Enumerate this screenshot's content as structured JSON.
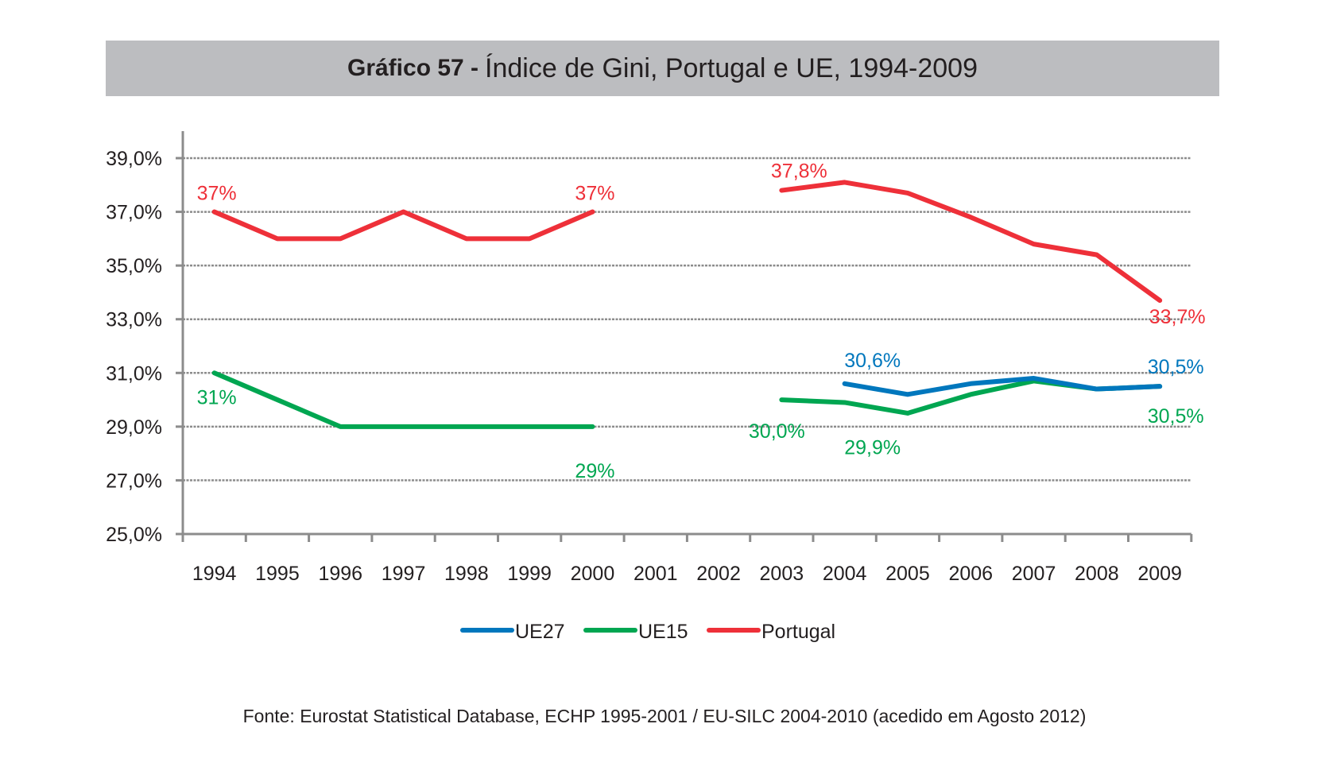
{
  "chart_data": {
    "type": "line",
    "title_prefix": "Gráfico 57 -",
    "title": "Índice de Gini, Portugal e UE, 1994-2009",
    "xlabel": "",
    "ylabel": "",
    "categories": [
      "1994",
      "1995",
      "1996",
      "1997",
      "1998",
      "1999",
      "2000",
      "2001",
      "2002",
      "2003",
      "2004",
      "2005",
      "2006",
      "2007",
      "2008",
      "2009"
    ],
    "ylim": [
      25,
      40
    ],
    "yticks": [
      25,
      27,
      29,
      31,
      33,
      35,
      37,
      39
    ],
    "ytick_labels": [
      "25,0%",
      "27,0%",
      "29,0%",
      "31,0%",
      "33,0%",
      "35,0%",
      "37,0%",
      "39,0%"
    ],
    "grid": "horizontal dotted",
    "legend_position": "bottom",
    "series": [
      {
        "name": "UE27",
        "color": "#0077bd",
        "values": [
          null,
          null,
          null,
          null,
          null,
          null,
          null,
          null,
          null,
          null,
          30.6,
          30.2,
          30.6,
          30.8,
          30.4,
          30.5
        ]
      },
      {
        "name": "UE15",
        "color": "#00a651",
        "values": [
          31,
          30,
          29,
          29,
          29,
          29,
          29,
          null,
          null,
          30.0,
          29.9,
          29.5,
          30.2,
          30.7,
          30.4,
          30.5
        ]
      },
      {
        "name": "Portugal",
        "color": "#ee3039",
        "values": [
          37,
          36,
          36,
          37,
          36,
          36,
          37,
          null,
          null,
          37.8,
          38.1,
          37.7,
          36.8,
          35.8,
          35.4,
          33.7
        ]
      }
    ],
    "data_labels": [
      {
        "series": "Portugal",
        "year": "1994",
        "text": "37%"
      },
      {
        "series": "Portugal",
        "year": "2000",
        "text": "37%"
      },
      {
        "series": "Portugal",
        "year": "2003",
        "text": "37,8%"
      },
      {
        "series": "Portugal",
        "year": "2009",
        "text": "33,7%"
      },
      {
        "series": "UE27",
        "year": "2004",
        "text": "30,6%"
      },
      {
        "series": "UE27",
        "year": "2009",
        "text": "30,5%"
      },
      {
        "series": "UE15",
        "year": "1994",
        "text": "31%"
      },
      {
        "series": "UE15",
        "year": "2000",
        "text": "29%"
      },
      {
        "series": "UE15",
        "year": "2003",
        "text": "30,0%"
      },
      {
        "series": "UE15",
        "year": "2004",
        "text": "29,9%"
      },
      {
        "series": "UE15",
        "year": "2009",
        "text": "30,5%"
      }
    ],
    "axis_color": "#8c8c8c"
  },
  "title_bar_color": "#bcbdc0",
  "footnote": "Fonte: Eurostat Statistical Database, ECHP 1995-2001 / EU-SILC 2004-2010 (acedido em Agosto 2012)"
}
